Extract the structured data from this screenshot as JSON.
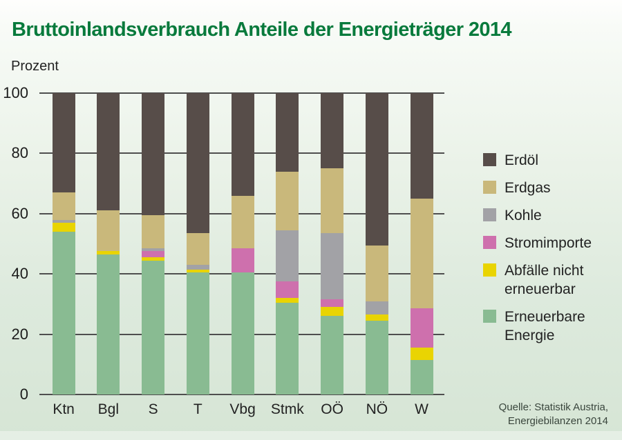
{
  "title": "Bruttoinlandsverbrauch Anteile der Energieträger 2014",
  "y_axis_title": "Prozent",
  "source": {
    "line1": "Quelle: Statistik Austria,",
    "line2": "Energiebilanzen 2014"
  },
  "colors": {
    "title_green": "#087a3c",
    "gridline": "#4e4e4e",
    "erdoel": "#574d49",
    "erdgas": "#c9b87b",
    "kohle": "#a2a2a6",
    "stromimporte": "#ce70ad",
    "abfaelle": "#e9d402",
    "erneuerbare": "#89bb92"
  },
  "chart_data": {
    "type": "bar",
    "stacked": true,
    "title": "Bruttoinlandsverbrauch Anteile der Energieträger 2014",
    "xlabel": "",
    "ylabel": "Prozent",
    "ylim": [
      0,
      100
    ],
    "yticks": [
      0,
      20,
      40,
      60,
      80,
      100
    ],
    "grid": true,
    "legend_position": "right",
    "categories": [
      "Ktn",
      "Bgl",
      "S",
      "T",
      "Vbg",
      "Stmk",
      "OÖ",
      "NÖ",
      "W"
    ],
    "series": [
      {
        "name": "Erneuerbare Energie",
        "color": "#89bb92",
        "values": [
          54,
          46.5,
          44.5,
          40.5,
          40.5,
          30.5,
          26,
          24.5,
          11.5
        ]
      },
      {
        "name": "Abfälle nicht erneuerbar",
        "color": "#e9d402",
        "values": [
          3,
          1,
          1,
          1,
          0,
          1.5,
          3,
          2,
          4
        ]
      },
      {
        "name": "Stromimporte",
        "color": "#ce70ad",
        "values": [
          0,
          0,
          2,
          0,
          8,
          5.5,
          2.5,
          0,
          13
        ]
      },
      {
        "name": "Kohle",
        "color": "#a2a2a6",
        "values": [
          1,
          0,
          1,
          1.5,
          0,
          17,
          22,
          4.5,
          0
        ]
      },
      {
        "name": "Erdgas",
        "color": "#c9b87b",
        "values": [
          9,
          13.5,
          11,
          10.5,
          17.5,
          19.5,
          21.5,
          18.5,
          36.5
        ]
      },
      {
        "name": "Erdöl",
        "color": "#574d49",
        "values": [
          33,
          39,
          40.5,
          46.5,
          34,
          26,
          25,
          50.5,
          35
        ]
      }
    ],
    "legend_order": [
      "Erdöl",
      "Erdgas",
      "Kohle",
      "Stromimporte",
      "Abfälle nicht erneuerbar",
      "Erneuerbare Energie"
    ]
  }
}
